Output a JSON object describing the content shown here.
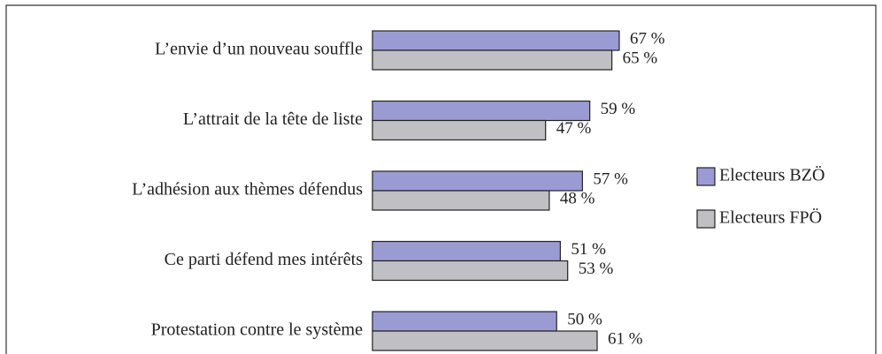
{
  "chart_data": {
    "type": "bar",
    "orientation": "horizontal",
    "categories": [
      "L’envie d’un nouveau souffle",
      "L’attrait de la tête de liste",
      "L’adhésion aux thèmes défendus",
      "Ce parti défend mes intérêts",
      "Protestation contre le système"
    ],
    "series": [
      {
        "name": "Electeurs BZÖ",
        "color": "#9b9bd4",
        "values": [
          67,
          59,
          57,
          51,
          50
        ],
        "value_labels": [
          "67 %",
          "59 %",
          "57 %",
          "51 %",
          "50 %"
        ]
      },
      {
        "name": "Electeurs FPÖ",
        "color": "#c0c0c4",
        "values": [
          65,
          47,
          48,
          53,
          61
        ],
        "value_labels": [
          "65 %",
          "47 %",
          "48 %",
          "53 %",
          "61 %"
        ]
      }
    ],
    "legend": "right"
  }
}
